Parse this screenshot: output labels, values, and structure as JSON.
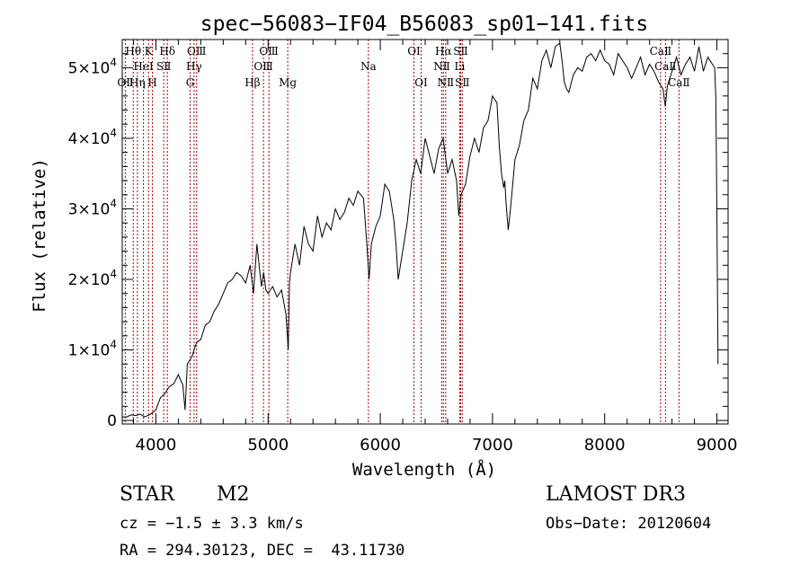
{
  "chart_data": {
    "type": "line",
    "title": "spec−56083−IF04_B56083_sp01−141.fits",
    "xlabel": "Wavelength (Å)",
    "ylabel": "Flux (relative)",
    "xlim": [
      3700,
      9100
    ],
    "ylim": [
      -500,
      54000
    ],
    "x_ticks": [
      4000,
      5000,
      6000,
      7000,
      8000,
      9000
    ],
    "x_tick_labels": [
      "4000",
      "5000",
      "6000",
      "7000",
      "8000",
      "9000"
    ],
    "y_ticks": [
      0,
      10000,
      20000,
      30000,
      40000,
      50000
    ],
    "y_tick_labels": [
      {
        "mant": "0",
        "exp": ""
      },
      {
        "mant": "1×10",
        "exp": "4"
      },
      {
        "mant": "2×10",
        "exp": "4"
      },
      {
        "mant": "3×10",
        "exp": "4"
      },
      {
        "mant": "4×10",
        "exp": "4"
      },
      {
        "mant": "5×10",
        "exp": "4"
      }
    ],
    "spectrum": {
      "x": [
        3700,
        3740,
        3780,
        3820,
        3860,
        3900,
        3940,
        3980,
        4000,
        4040,
        4080,
        4120,
        4160,
        4200,
        4240,
        4260,
        4280,
        4320,
        4360,
        4400,
        4440,
        4480,
        4520,
        4560,
        4600,
        4640,
        4680,
        4720,
        4760,
        4800,
        4840,
        4870,
        4900,
        4920,
        4940,
        4960,
        4980,
        5000,
        5040,
        5080,
        5120,
        5160,
        5180,
        5190,
        5200,
        5240,
        5280,
        5320,
        5360,
        5400,
        5440,
        5480,
        5520,
        5560,
        5600,
        5640,
        5680,
        5720,
        5760,
        5800,
        5850,
        5880,
        5900,
        5920,
        5960,
        6000,
        6040,
        6080,
        6120,
        6140,
        6160,
        6200,
        6240,
        6280,
        6320,
        6360,
        6400,
        6440,
        6480,
        6520,
        6560,
        6600,
        6640,
        6680,
        6700,
        6720,
        6760,
        6800,
        6840,
        6880,
        6920,
        6960,
        7000,
        7040,
        7060,
        7080,
        7100,
        7110,
        7120,
        7140,
        7160,
        7200,
        7240,
        7280,
        7320,
        7360,
        7400,
        7440,
        7480,
        7520,
        7560,
        7600,
        7620,
        7640,
        7660,
        7680,
        7720,
        7760,
        7800,
        7840,
        7880,
        7920,
        7960,
        8000,
        8040,
        8080,
        8120,
        8160,
        8200,
        8240,
        8280,
        8320,
        8360,
        8400,
        8440,
        8480,
        8520,
        8540,
        8560,
        8600,
        8640,
        8680,
        8720,
        8760,
        8800,
        8840,
        8880,
        8920,
        8960,
        8980,
        8990,
        9000,
        9010
      ],
      "y": [
        500,
        500,
        800,
        700,
        900,
        500,
        800,
        1200,
        1500,
        3200,
        3800,
        4800,
        5200,
        6500,
        5000,
        1500,
        8000,
        9000,
        11000,
        11500,
        13500,
        14000,
        15500,
        16500,
        18000,
        19500,
        20000,
        21000,
        20500,
        19500,
        22000,
        18000,
        25000,
        22000,
        19000,
        21000,
        18500,
        18000,
        19000,
        17500,
        18500,
        15000,
        10000,
        19500,
        21000,
        25000,
        22000,
        27500,
        25000,
        24000,
        29000,
        26000,
        28000,
        27000,
        30000,
        28500,
        29500,
        31500,
        30500,
        32500,
        31500,
        25000,
        20000,
        25000,
        27500,
        29000,
        33500,
        32500,
        28500,
        25000,
        20000,
        24000,
        28000,
        34000,
        37000,
        35000,
        40000,
        37500,
        35000,
        38500,
        40000,
        35000,
        37000,
        34000,
        29000,
        32000,
        33500,
        37500,
        40000,
        38000,
        41500,
        42500,
        46000,
        45000,
        39000,
        35000,
        33000,
        34000,
        31000,
        27000,
        30000,
        37000,
        39000,
        42500,
        44000,
        48500,
        47000,
        51000,
        52500,
        50000,
        53000,
        53500,
        51000,
        48000,
        47000,
        46500,
        49000,
        50000,
        49500,
        51500,
        52000,
        51000,
        52500,
        51000,
        50500,
        49000,
        52000,
        51000,
        50000,
        48500,
        50000,
        51500,
        49000,
        50500,
        49500,
        48000,
        47000,
        44500,
        47500,
        49500,
        51500,
        49000,
        50500,
        51500,
        49500,
        53000,
        49500,
        51500,
        50500,
        50000,
        46000,
        30000,
        8000
      ]
    },
    "lines": [
      {
        "name": "OⅡ",
        "x": 3727,
        "row": 2
      },
      {
        "name": "Hθ",
        "x": 3798,
        "row": 0
      },
      {
        "name": "Hη",
        "x": 3835,
        "row": 2
      },
      {
        "name": "HeⅠ",
        "x": 3889,
        "row": 1
      },
      {
        "name": "K",
        "x": 3934,
        "row": 0
      },
      {
        "name": "H",
        "x": 3969,
        "row": 2
      },
      {
        "name": "SⅡ",
        "x": 4070,
        "row": 1
      },
      {
        "name": "Hδ",
        "x": 4102,
        "row": 0
      },
      {
        "name": "G",
        "x": 4305,
        "row": 2
      },
      {
        "name": "Hγ",
        "x": 4340,
        "row": 1
      },
      {
        "name": "OⅢ",
        "x": 4363,
        "row": 0
      },
      {
        "name": "Hβ",
        "x": 4861,
        "row": 2
      },
      {
        "name": "OⅢ",
        "x": 4959,
        "row": 1
      },
      {
        "name": "OⅢ",
        "x": 5007,
        "row": 0
      },
      {
        "name": "Mg",
        "x": 5175,
        "row": 2
      },
      {
        "name": "Na",
        "x": 5894,
        "row": 1
      },
      {
        "name": "OⅠ",
        "x": 6300,
        "row": 0
      },
      {
        "name": "OⅠ",
        "x": 6364,
        "row": 2
      },
      {
        "name": "NⅡ",
        "x": 6548,
        "row": 1
      },
      {
        "name": "Hα",
        "x": 6563,
        "row": 0
      },
      {
        "name": "NⅡ",
        "x": 6583,
        "row": 2
      },
      {
        "name": "Li",
        "x": 6708,
        "row": 1
      },
      {
        "name": "SⅡ",
        "x": 6716,
        "row": 0
      },
      {
        "name": "SⅡ",
        "x": 6731,
        "row": 2
      },
      {
        "name": "CaⅡ",
        "x": 8498,
        "row": 0
      },
      {
        "name": "CaⅡ",
        "x": 8542,
        "row": 1
      },
      {
        "name": "CaⅡ",
        "x": 8662,
        "row": 2
      }
    ]
  },
  "info": {
    "object_class": "STAR",
    "subclass": "M2",
    "survey": "LAMOST DR3",
    "cz_line": "cz = −1.5 ± 3.3 km/s",
    "obs_date_line": "Obs−Date: 20120604",
    "radec_line": "RA = 294.30123, DEC =  43.11730"
  },
  "colors": {
    "axis": "#000000",
    "spectrum": "#000000",
    "line_marker": "#b00000"
  }
}
